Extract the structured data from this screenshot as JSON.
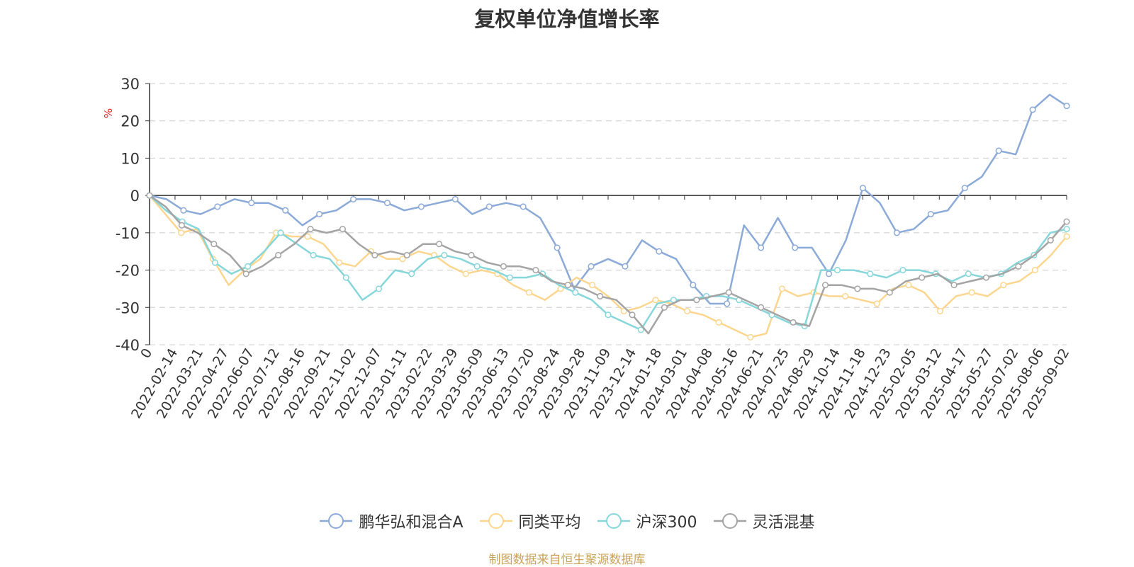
{
  "chart_data": {
    "type": "line",
    "title": "复权单位净值增长率",
    "ylabel": "%",
    "ylim": [
      -40,
      30
    ],
    "yticks": [
      30,
      20,
      10,
      0,
      -10,
      -20,
      -30,
      -40
    ],
    "grid": true,
    "legend_position": "bottom",
    "x_ticks": [
      "0",
      "2022-02-14",
      "2022-03-21",
      "2022-04-27",
      "2022-06-07",
      "2022-07-12",
      "2022-08-16",
      "2022-09-21",
      "2022-11-02",
      "2022-12-07",
      "2023-01-11",
      "2023-02-22",
      "2023-03-29",
      "2023-05-09",
      "2023-06-13",
      "2023-07-20",
      "2023-08-24",
      "2023-09-28",
      "2023-11-09",
      "2023-12-14",
      "2024-01-18",
      "2024-03-01",
      "2024-04-08",
      "2024-05-16",
      "2024-06-21",
      "2024-07-25",
      "2024-08-29",
      "2024-10-14",
      "2024-11-18",
      "2024-12-23",
      "2025-02-05",
      "2025-03-12",
      "2025-04-17",
      "2025-05-27",
      "2025-07-02",
      "2025-08-06",
      "2025-09-02"
    ],
    "series": [
      {
        "name": "鹏华弘和混合A",
        "color": "#8caad8",
        "values": [
          0,
          -1,
          -4,
          -5,
          -3,
          -1,
          -2,
          -2,
          -4,
          -8,
          -5,
          -4,
          -1,
          -1,
          -2,
          -4,
          -3,
          -2,
          -1,
          -5,
          -3,
          -2,
          -3,
          -6,
          -14,
          -25,
          -19,
          -17,
          -19,
          -12,
          -15,
          -17,
          -24,
          -29,
          -29,
          -8,
          -14,
          -6,
          -14,
          -14,
          -21,
          -12,
          2,
          -2,
          -10,
          -9,
          -5,
          -4,
          2,
          5,
          12,
          11,
          23,
          27,
          24
        ]
      },
      {
        "name": "同类平均",
        "color": "#fcd68e",
        "values": [
          0,
          -5,
          -10,
          -9,
          -17,
          -24,
          -20,
          -17,
          -10,
          -11,
          -11,
          -13,
          -18,
          -19,
          -15,
          -17,
          -17,
          -15,
          -16,
          -19,
          -21,
          -20,
          -21,
          -24,
          -26,
          -28,
          -25,
          -22,
          -24,
          -27,
          -31,
          -30,
          -28,
          -29,
          -31,
          -32,
          -34,
          -36,
          -38,
          -37,
          -25,
          -27,
          -26,
          -27,
          -27,
          -28,
          -29,
          -25,
          -24,
          -26,
          -31,
          -27,
          -26,
          -27,
          -24,
          -23,
          -20,
          -16,
          -11
        ]
      },
      {
        "name": "沪深300",
        "color": "#86d6da",
        "values": [
          0,
          -4,
          -7,
          -9,
          -18,
          -21,
          -19,
          -15,
          -10,
          -13,
          -16,
          -17,
          -22,
          -28,
          -25,
          -20,
          -21,
          -17,
          -16,
          -17,
          -19,
          -20,
          -22,
          -22,
          -21,
          -24,
          -26,
          -28,
          -32,
          -34,
          -36,
          -29,
          -28,
          -28,
          -27,
          -27,
          -28,
          -30,
          -32,
          -34,
          -35,
          -20,
          -20,
          -20,
          -21,
          -22,
          -20,
          -20,
          -21,
          -23,
          -21,
          -22,
          -21,
          -18,
          -16,
          -10,
          -9
        ]
      },
      {
        "name": "灵活混基",
        "color": "#a4a4a4",
        "values": [
          0,
          -3,
          -8,
          -10,
          -13,
          -16,
          -21,
          -19,
          -16,
          -13,
          -9,
          -10,
          -9,
          -13,
          -16,
          -15,
          -16,
          -13,
          -13,
          -15,
          -16,
          -18,
          -19,
          -19,
          -20,
          -23,
          -24,
          -25,
          -27,
          -28,
          -32,
          -37,
          -30,
          -28,
          -28,
          -27,
          -26,
          -28,
          -30,
          -32,
          -34,
          -35,
          -24,
          -24,
          -25,
          -25,
          -26,
          -23,
          -22,
          -21,
          -24,
          -23,
          -22,
          -21,
          -19,
          -16,
          -12,
          -7
        ]
      }
    ]
  },
  "source_note": "制图数据来自恒生聚源数据库"
}
